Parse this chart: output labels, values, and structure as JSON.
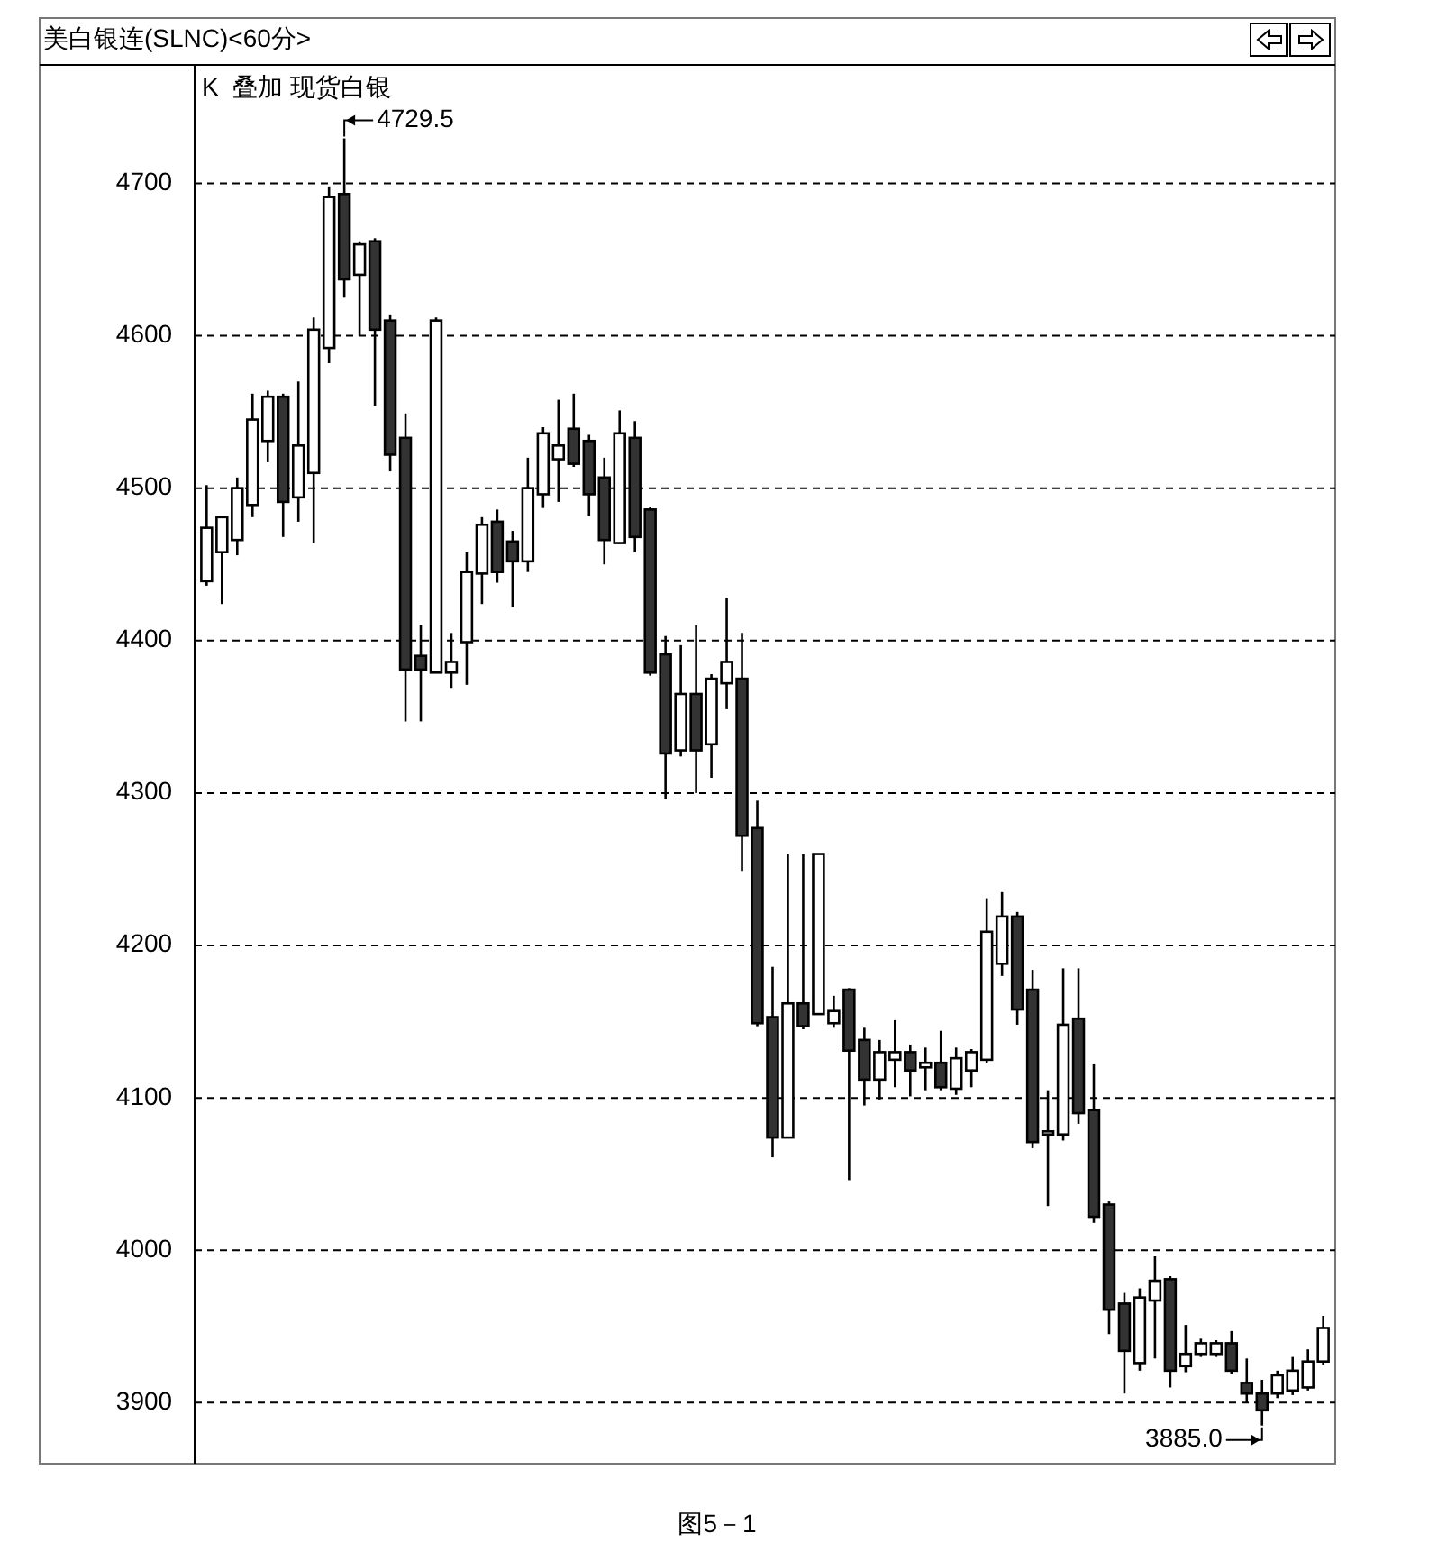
{
  "chart_data": {
    "type": "candlestick",
    "title": "美白银连(SLNC)<60分>",
    "subtitle": "K  叠加 现货白银",
    "categories": [
      null,
      null,
      null,
      null,
      null,
      null,
      null,
      null,
      null,
      null,
      null,
      null,
      null,
      null,
      null,
      null,
      null,
      null,
      null,
      null,
      null,
      null,
      null,
      null,
      null,
      null,
      null,
      null,
      null,
      null,
      null,
      null,
      null,
      null,
      null,
      null,
      null,
      null,
      null,
      null,
      null,
      null,
      null,
      null,
      null,
      null,
      null,
      null,
      null,
      null,
      null,
      null,
      null,
      null,
      null,
      null,
      null,
      null,
      null,
      null,
      null,
      null,
      null,
      null,
      null,
      null,
      null,
      null,
      null,
      null,
      null,
      null,
      null,
      null
    ],
    "ohlc": [
      [
        4439,
        4502,
        4436,
        4474
      ],
      [
        4458,
        4481,
        4424,
        4481
      ],
      [
        4466,
        4507,
        4456,
        4500
      ],
      [
        4489,
        4562,
        4481,
        4545
      ],
      [
        4531,
        4564,
        4517,
        4560
      ],
      [
        4560,
        4562,
        4468,
        4491
      ],
      [
        4494,
        4570,
        4478,
        4528
      ],
      [
        4510,
        4612,
        4464,
        4604
      ],
      [
        4592,
        4698,
        4582,
        4691
      ],
      [
        4693,
        4729.5,
        4625,
        4637
      ],
      [
        4640,
        4662,
        4600,
        4660
      ],
      [
        4662,
        4664,
        4554,
        4604
      ],
      [
        4610,
        4614,
        4511,
        4522
      ],
      [
        4533,
        4549,
        4347,
        4381
      ],
      [
        4390,
        4410,
        4347,
        4381
      ],
      [
        4379,
        4612,
        4379,
        4610
      ],
      [
        4379,
        4405,
        4369,
        4386
      ],
      [
        4399,
        4458,
        4371,
        4445
      ],
      [
        4444,
        4481,
        4424,
        4476
      ],
      [
        4478,
        4486,
        4438,
        4445
      ],
      [
        4465,
        4472,
        4422,
        4452
      ],
      [
        4452,
        4520,
        4445,
        4500
      ],
      [
        4496,
        4540,
        4487,
        4536
      ],
      [
        4519,
        4558,
        4491,
        4528
      ],
      [
        4539,
        4562,
        4514,
        4516
      ],
      [
        4531,
        4535,
        4482,
        4496
      ],
      [
        4507,
        4520,
        4450,
        4466
      ],
      [
        4464,
        4551,
        4464,
        4536
      ],
      [
        4533,
        4544,
        4458,
        4468
      ],
      [
        4486,
        4488,
        4377,
        4379
      ],
      [
        4391,
        4403,
        4296,
        4326
      ],
      [
        4328,
        4397,
        4324,
        4365
      ],
      [
        4365,
        4410,
        4300,
        4328
      ],
      [
        4332,
        4378,
        4310,
        4375
      ],
      [
        4372,
        4428,
        4355,
        4386
      ],
      [
        4375,
        4405,
        4249,
        4272
      ],
      [
        4277,
        4295,
        4147,
        4149
      ],
      [
        4153,
        4186,
        4061,
        4074
      ],
      [
        4074,
        4260,
        4074,
        4162
      ],
      [
        4162,
        4260,
        4145,
        4147
      ],
      [
        4155,
        4260,
        4155,
        4260
      ],
      [
        4149,
        4167,
        4146,
        4157
      ],
      [
        4171,
        4172,
        4046,
        4131
      ],
      [
        4138,
        4146,
        4095,
        4112
      ],
      [
        4112,
        4138,
        4099,
        4130
      ],
      [
        4125,
        4151,
        4107,
        4130
      ],
      [
        4130,
        4135,
        4101,
        4118
      ],
      [
        4120,
        4133,
        4105,
        4123
      ],
      [
        4123,
        4144,
        4105,
        4107
      ],
      [
        4106,
        4133,
        4102,
        4126
      ],
      [
        4118,
        4132,
        4107,
        4130
      ],
      [
        4125,
        4231,
        4123,
        4209
      ],
      [
        4188,
        4235,
        4180,
        4219
      ],
      [
        4219,
        4222,
        4148,
        4158
      ],
      [
        4171,
        4184,
        4067,
        4071
      ],
      [
        4076,
        4105,
        4029,
        4078
      ],
      [
        4076,
        4185,
        4072,
        4148
      ],
      [
        4152,
        4185,
        4083,
        4090
      ],
      [
        4092,
        4122,
        4018,
        4022
      ],
      [
        4030,
        4032,
        3945,
        3961
      ],
      [
        3965,
        3972,
        3906,
        3934
      ],
      [
        3926,
        3975,
        3921,
        3969
      ],
      [
        3967,
        3996,
        3929,
        3980
      ],
      [
        3981,
        3983,
        3910,
        3921
      ],
      [
        3924,
        3951,
        3920,
        3932
      ],
      [
        3932,
        3942,
        3930,
        3939
      ],
      [
        3932,
        3941,
        3930,
        3939
      ],
      [
        3939,
        3947,
        3919,
        3921
      ],
      [
        3913,
        3929,
        3900,
        3906
      ],
      [
        3906,
        3915,
        3885,
        3895
      ],
      [
        3906,
        3921,
        3903,
        3918
      ],
      [
        3908,
        3930,
        3905,
        3921
      ],
      [
        3910,
        3935,
        3908,
        3927
      ],
      [
        3927,
        3957,
        3925,
        3949
      ]
    ],
    "ylim": [
      3860,
      4773
    ],
    "yticks": [
      3900,
      4000,
      4100,
      4200,
      4300,
      4400,
      4500,
      4600,
      4700
    ],
    "grid": "y",
    "tick_labels": "y",
    "annotations": [
      "4729.5",
      "3885.0",
      "图5－1"
    ]
  }
}
